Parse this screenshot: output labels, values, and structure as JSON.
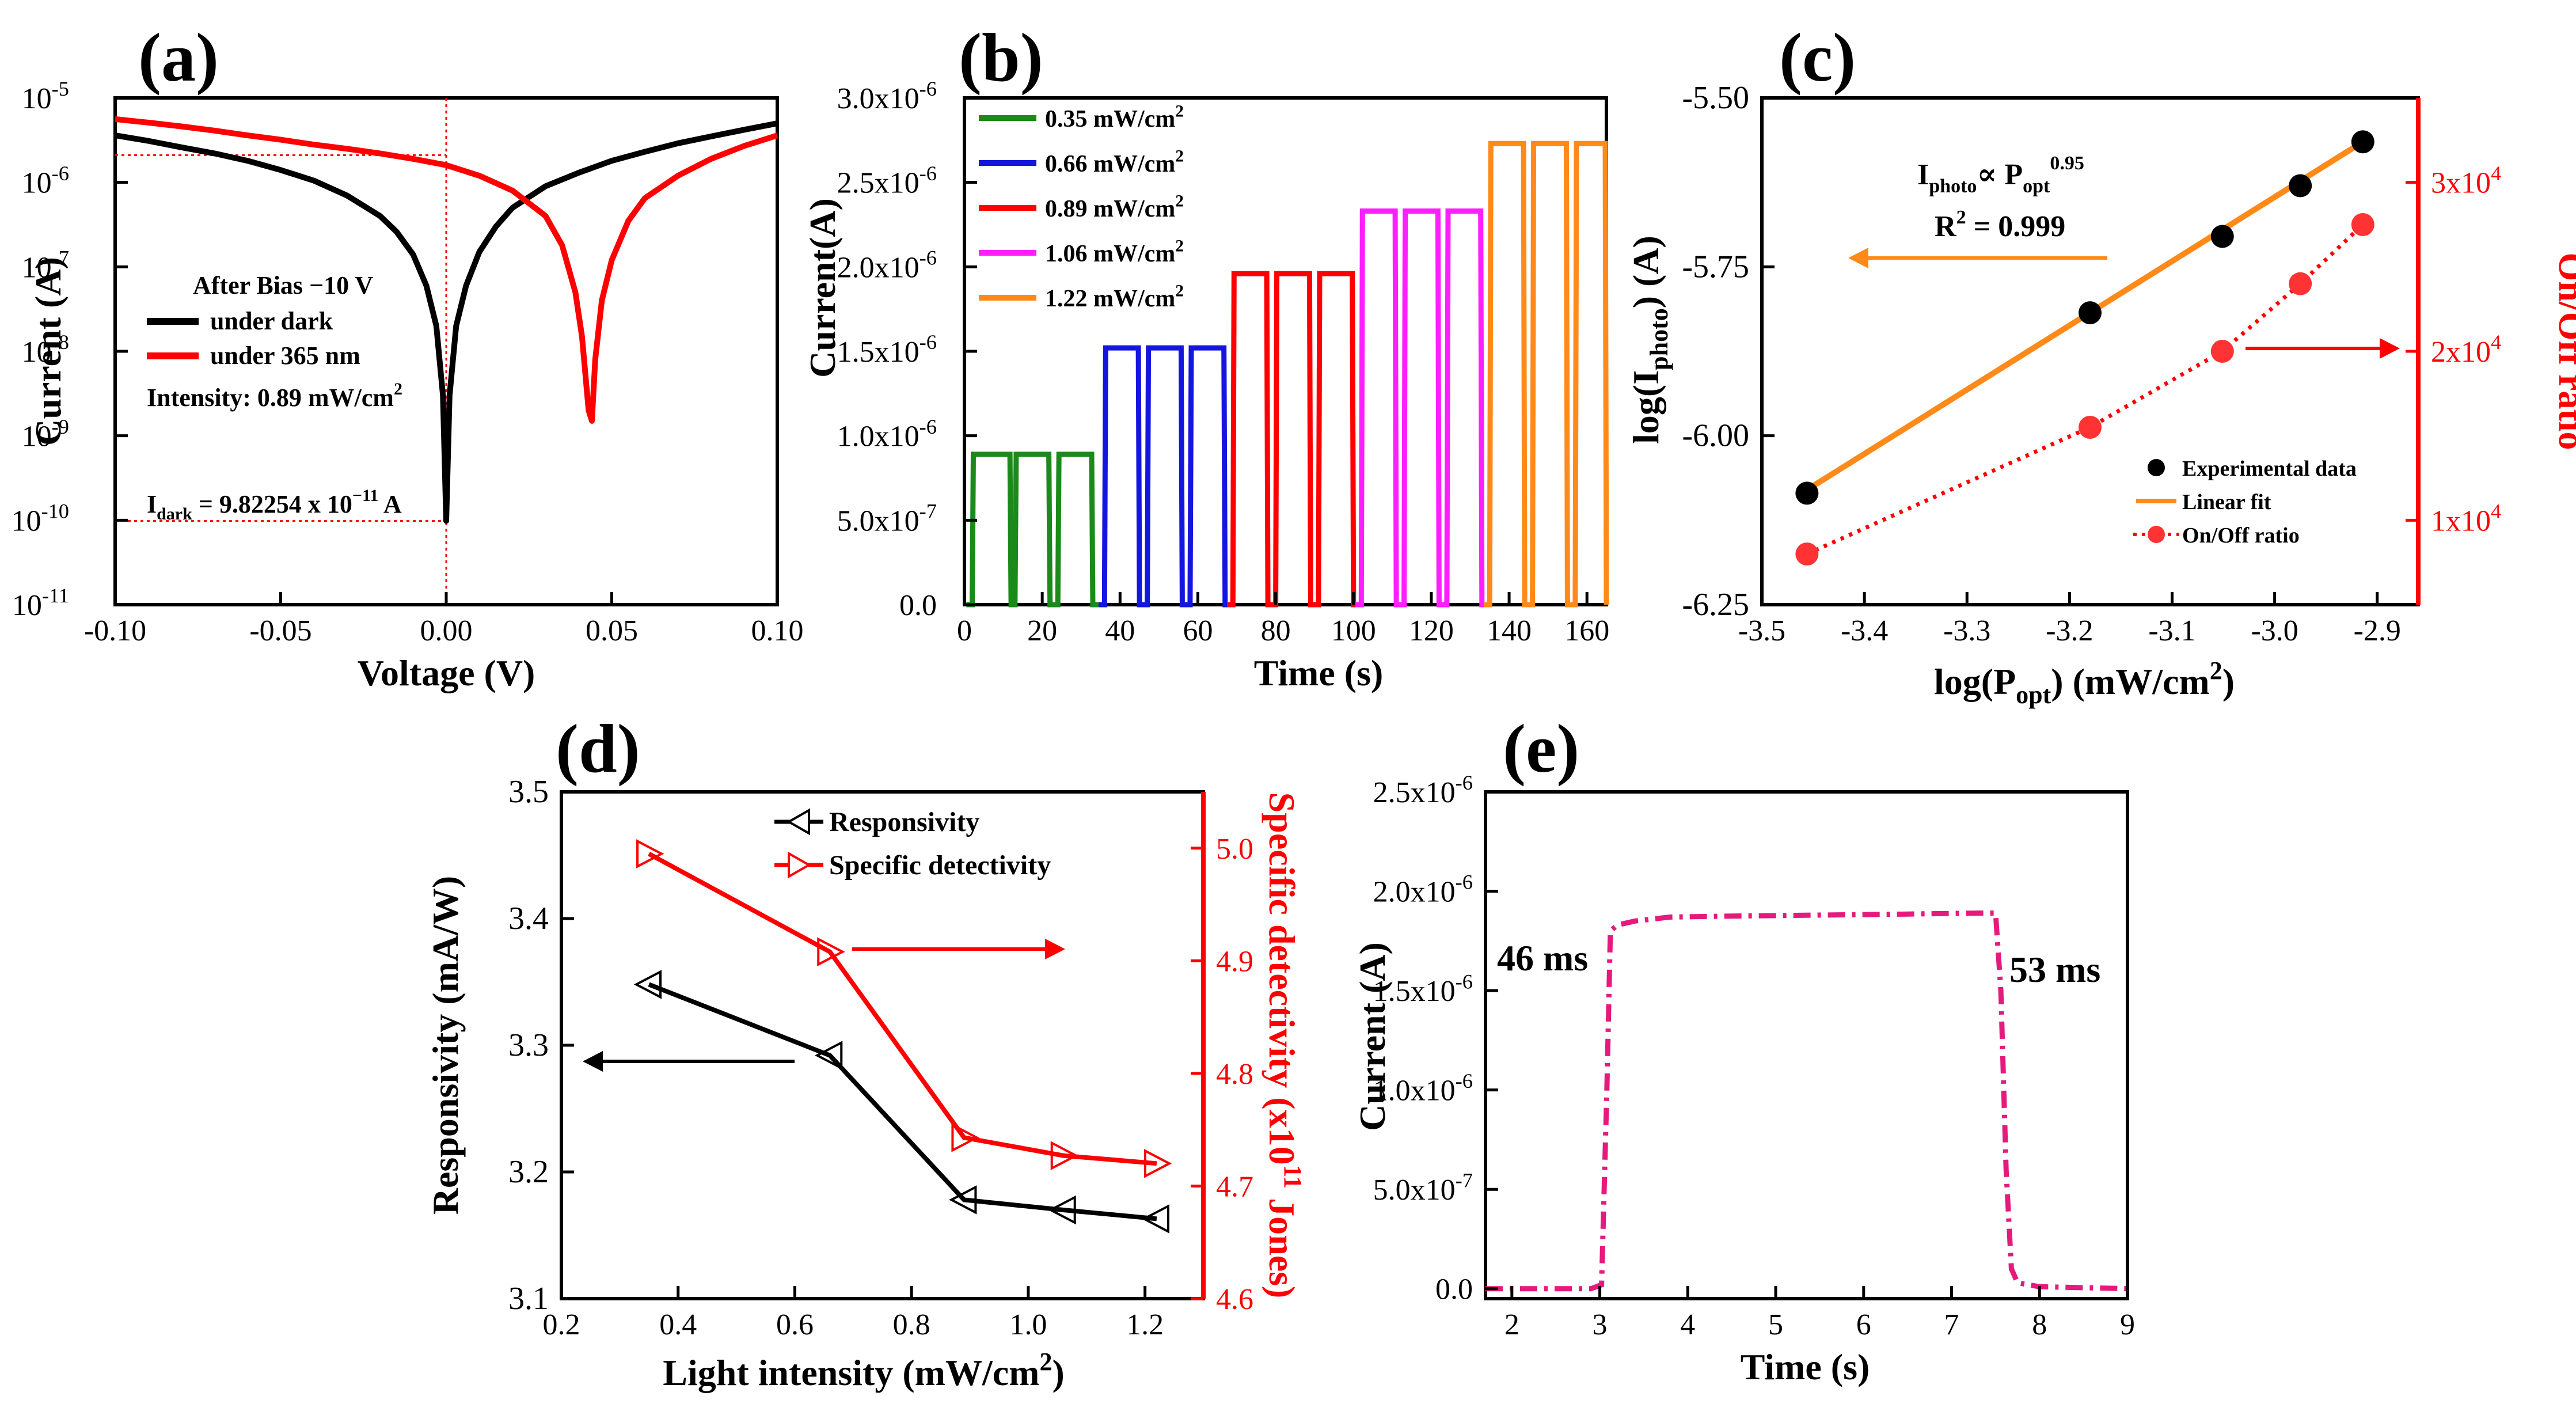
{
  "figure": {
    "panels": {
      "a": {
        "label": "(a)",
        "xlabel": "Voltage (V)",
        "ylabel": "Current (A)",
        "xticks": [
          "-0.10",
          "-0.05",
          "0.00",
          "0.05",
          "0.10"
        ],
        "yticks": [
          {
            "base": "10",
            "exp": "-5"
          },
          {
            "base": "10",
            "exp": "-6"
          },
          {
            "base": "10",
            "exp": "-7"
          },
          {
            "base": "10",
            "exp": "-8"
          },
          {
            "base": "10",
            "exp": "-9"
          },
          {
            "base": "10",
            "exp": "-10"
          },
          {
            "base": "10",
            "exp": "-11"
          }
        ],
        "legend_header": "After Bias −10 V",
        "legend": [
          "under dark",
          "under 365 nm"
        ],
        "intensity_prefix": "Intensity: 0.89 mW/cm",
        "intensity_sup": "2",
        "idark_main": "I",
        "idark_sub": "dark",
        "idark_mid": " = 9.82254 x 10",
        "idark_exp": "−11",
        "idark_unit": " A"
      },
      "b": {
        "label": "(b)",
        "xlabel": "Time (s)",
        "ylabel": "Current(A)",
        "xticks": [
          "0",
          "20",
          "40",
          "60",
          "80",
          "100",
          "120",
          "140",
          "160"
        ],
        "yticks": [
          {
            "mant": "0.0",
            "exp": ""
          },
          {
            "mant": "5.0x10",
            "exp": "-7"
          },
          {
            "mant": "1.0x10",
            "exp": "-6"
          },
          {
            "mant": "1.5x10",
            "exp": "-6"
          },
          {
            "mant": "2.0x10",
            "exp": "-6"
          },
          {
            "mant": "2.5x10",
            "exp": "-6"
          },
          {
            "mant": "3.0x10",
            "exp": "-6"
          }
        ],
        "legend": [
          {
            "text": "0.35 mW/cm",
            "sup": "2"
          },
          {
            "text": "0.66 mW/cm",
            "sup": "2"
          },
          {
            "text": "0.89 mW/cm",
            "sup": "2"
          },
          {
            "text": "1.06 mW/cm",
            "sup": "2"
          },
          {
            "text": "1.22 mW/cm",
            "sup": "2"
          }
        ]
      },
      "c": {
        "label": "(c)",
        "xlabel_main": "log(P",
        "xlabel_sub": "opt",
        "xlabel_rest": ") (mW/cm",
        "xlabel_sup": "2",
        "xlabel_end": ")",
        "ylabel_main": "log(I",
        "ylabel_sub": "photo",
        "ylabel_end": ") (A)",
        "y2label": "On/Off ratio",
        "xticks": [
          "-3.5",
          "-3.4",
          "-3.3",
          "-3.2",
          "-3.1",
          "-3.0",
          "-2.9"
        ],
        "yticks": [
          "-5.50",
          "-5.75",
          "-6.00",
          "-6.25"
        ],
        "y2ticks": [
          {
            "mant": "1x10",
            "exp": "4"
          },
          {
            "mant": "2x10",
            "exp": "4"
          },
          {
            "mant": "3x10",
            "exp": "4"
          }
        ],
        "eq_i": "I",
        "eq_i_sub": "photo",
        "eq_prop": "∝ P",
        "eq_p_sub": "opt",
        "eq_exp": "0.95",
        "r2_main": "R",
        "r2_sup": "2",
        "r2_val": " = 0.999",
        "legend": [
          "Experimental data",
          "Linear fit",
          "On/Off ratio"
        ]
      },
      "d": {
        "label": "(d)",
        "xlabel_main": "Light intensity (mW/cm",
        "xlabel_sup": "2",
        "xlabel_end": ")",
        "ylabel": "Responsivity (mA/W)",
        "y2label_main": "Specific detectivity (x10",
        "y2label_sup": "11",
        "y2label_end": " Jones)",
        "xticks": [
          "0.2",
          "0.4",
          "0.6",
          "0.8",
          "1.0",
          "1.2"
        ],
        "yticks": [
          "3.1",
          "3.2",
          "3.3",
          "3.4",
          "3.5"
        ],
        "y2ticks": [
          "4.6",
          "4.7",
          "4.8",
          "4.9",
          "5.0"
        ],
        "legend": [
          "Responsivity",
          "Specific detectivity"
        ]
      },
      "e": {
        "label": "(e)",
        "xlabel": "Time (s)",
        "ylabel": "Current (A)",
        "xticks": [
          "2",
          "3",
          "4",
          "5",
          "6",
          "7",
          "8",
          "9"
        ],
        "yticks": [
          {
            "mant": "0.0",
            "exp": ""
          },
          {
            "mant": "5.0x10",
            "exp": "-7"
          },
          {
            "mant": "1.0x10",
            "exp": "-6"
          },
          {
            "mant": "1.5x10",
            "exp": "-6"
          },
          {
            "mant": "2.0x10",
            "exp": "-6"
          },
          {
            "mant": "2.5x10",
            "exp": "-6"
          }
        ],
        "rise_label": "46 ms",
        "fall_label": "53 ms"
      }
    }
  },
  "chart_data": [
    {
      "panel": "a",
      "type": "line",
      "title": "",
      "xlabel": "Voltage (V)",
      "ylabel": "Current (A)",
      "yscale": "log",
      "xlim": [
        -0.1,
        0.1
      ],
      "ylim": [
        1e-11,
        1e-05
      ],
      "series": [
        {
          "name": "under dark",
          "color": "#000000",
          "x": [
            -0.1,
            -0.09,
            -0.08,
            -0.07,
            -0.06,
            -0.05,
            -0.04,
            -0.03,
            -0.02,
            -0.015,
            -0.01,
            -0.006,
            -0.003,
            -0.001,
            0.0,
            0.001,
            0.003,
            0.006,
            0.01,
            0.015,
            0.02,
            0.03,
            0.04,
            0.05,
            0.06,
            0.07,
            0.08,
            0.09,
            0.1
          ],
          "y": [
            3.6e-06,
            3.1e-06,
            2.6e-06,
            2.2e-06,
            1.8e-06,
            1.4e-06,
            1.05e-06,
            7e-07,
            4e-07,
            2.6e-07,
            1.4e-07,
            6e-08,
            2e-08,
            3e-09,
            9.82e-11,
            3e-09,
            2e-08,
            6e-08,
            1.5e-07,
            3e-07,
            5e-07,
            9e-07,
            1.3e-06,
            1.8e-06,
            2.3e-06,
            2.9e-06,
            3.5e-06,
            4.2e-06,
            5e-06
          ]
        },
        {
          "name": "under 365 nm",
          "color": "#ff0000",
          "x": [
            -0.1,
            -0.09,
            -0.08,
            -0.07,
            -0.06,
            -0.05,
            -0.04,
            -0.03,
            -0.02,
            -0.01,
            0.0,
            0.01,
            0.02,
            0.03,
            0.035,
            0.039,
            0.041,
            0.043,
            0.044,
            0.045,
            0.047,
            0.05,
            0.055,
            0.06,
            0.07,
            0.08,
            0.09,
            0.1
          ],
          "y": [
            5.6e-06,
            5.1e-06,
            4.6e-06,
            4.1e-06,
            3.6e-06,
            3.2e-06,
            2.8e-06,
            2.5e-06,
            2.2e-06,
            1.9e-06,
            1.6e-06,
            1.2e-06,
            8e-07,
            4e-07,
            1.8e-07,
            5e-08,
            1.5e-08,
            2e-09,
            1.5e-09,
            8e-09,
            4e-08,
            1.2e-07,
            3.5e-07,
            6.5e-07,
            1.2e-06,
            1.9e-06,
            2.7e-06,
            3.6e-06
          ]
        }
      ],
      "annotations": [
        "After Bias −10 V",
        "Intensity: 0.89 mW/cm2",
        "Idark = 9.82254 x 10-11 A"
      ]
    },
    {
      "panel": "b",
      "type": "line",
      "title": "",
      "xlabel": "Time (s)",
      "ylabel": "Current(A)",
      "xlim": [
        0,
        165
      ],
      "ylim": [
        0,
        3e-06
      ],
      "series": [
        {
          "name": "0.35 mW/cm2",
          "color": "#1a8a1a",
          "on_level": 8.9e-07,
          "pulses": [
            [
              2,
              12
            ],
            [
              13,
              22
            ],
            [
              24,
              33
            ]
          ]
        },
        {
          "name": "0.66 mW/cm2",
          "color": "#1515e0",
          "on_level": 1.52e-06,
          "pulses": [
            [
              36,
              45
            ],
            [
              47,
              56
            ],
            [
              58,
              67
            ]
          ]
        },
        {
          "name": "0.89 mW/cm2",
          "color": "#ff0000",
          "on_level": 1.96e-06,
          "pulses": [
            [
              69,
              78
            ],
            [
              80,
              89
            ],
            [
              91,
              100
            ]
          ]
        },
        {
          "name": "1.06 mW/cm2",
          "color": "#ff1eff",
          "on_level": 2.33e-06,
          "pulses": [
            [
              102,
              111
            ],
            [
              113,
              122
            ],
            [
              124,
              133
            ]
          ]
        },
        {
          "name": "1.22 mW/cm2",
          "color": "#ff8a1a",
          "on_level": 2.73e-06,
          "pulses": [
            [
              135,
              144
            ],
            [
              146,
              155
            ],
            [
              157,
              165
            ]
          ]
        }
      ]
    },
    {
      "panel": "c",
      "type": "scatter",
      "title": "",
      "xlabel": "log(Popt) (mW/cm2)",
      "ylabel": "log(Iphoto) (A)",
      "y2label": "On/Off ratio",
      "xlim": [
        -3.5,
        -2.86
      ],
      "ylim": [
        -6.25,
        -5.5
      ],
      "y2lim": [
        5000,
        35000
      ],
      "series": [
        {
          "name": "Experimental data",
          "color": "#000000",
          "x": [
            -3.456,
            -3.18,
            -3.051,
            -2.975,
            -2.914
          ],
          "y": [
            -6.085,
            -5.818,
            -5.705,
            -5.63,
            -5.565
          ]
        },
        {
          "name": "Linear fit",
          "color": "#ff8a1a",
          "x": [
            -3.456,
            -2.914
          ],
          "y": [
            -6.08,
            -5.565
          ]
        },
        {
          "name": "On/Off ratio",
          "color": "#ff0000",
          "axis": "right",
          "x": [
            -3.456,
            -3.18,
            -3.051,
            -2.975,
            -2.914
          ],
          "y": [
            8000,
            15500,
            20000,
            24000,
            27500
          ]
        }
      ],
      "annotations": [
        "Iphoto ∝ Popt^0.95",
        "R2 = 0.999"
      ]
    },
    {
      "panel": "d",
      "type": "line",
      "title": "",
      "xlabel": "Light intensity (mW/cm2)",
      "ylabel": "Responsivity (mA/W)",
      "y2label": "Specific detectivity (x1011 Jones)",
      "xlim": [
        0.2,
        1.3
      ],
      "ylim": [
        3.1,
        3.5
      ],
      "y2lim": [
        4.6,
        5.05
      ],
      "series": [
        {
          "name": "Responsivity",
          "color": "#000000",
          "x": [
            0.35,
            0.66,
            0.89,
            1.06,
            1.22
          ],
          "y": [
            3.348,
            3.292,
            3.178,
            3.17,
            3.163
          ]
        },
        {
          "name": "Specific detectivity",
          "color": "#ff0000",
          "axis": "right",
          "x": [
            0.35,
            0.66,
            0.89,
            1.06,
            1.22
          ],
          "y": [
            4.995,
            4.908,
            4.743,
            4.727,
            4.72
          ]
        }
      ]
    },
    {
      "panel": "e",
      "type": "line",
      "title": "",
      "xlabel": "Time (s)",
      "ylabel": "Current (A)",
      "xlim": [
        1.7,
        9
      ],
      "ylim": [
        -5e-08,
        2.5e-06
      ],
      "series": [
        {
          "name": "photoresponse",
          "color": "#e6197c",
          "x": [
            1.7,
            2.9,
            3.02,
            3.08,
            3.12,
            3.2,
            3.4,
            3.8,
            4.5,
            5.5,
            6.5,
            7.3,
            7.5,
            7.56,
            7.62,
            7.68,
            7.75,
            8.0,
            9.0
          ],
          "y": [
            0,
            0,
            2e-08,
            1e-06,
            1.8e-06,
            1.83e-06,
            1.85e-06,
            1.87e-06,
            1.875e-06,
            1.88e-06,
            1.885e-06,
            1.89e-06,
            1.89e-06,
            1.5e-06,
            6e-07,
            1e-07,
            3e-08,
            1e-08,
            0
          ]
        }
      ],
      "annotations": [
        "46 ms",
        "53 ms"
      ]
    }
  ]
}
